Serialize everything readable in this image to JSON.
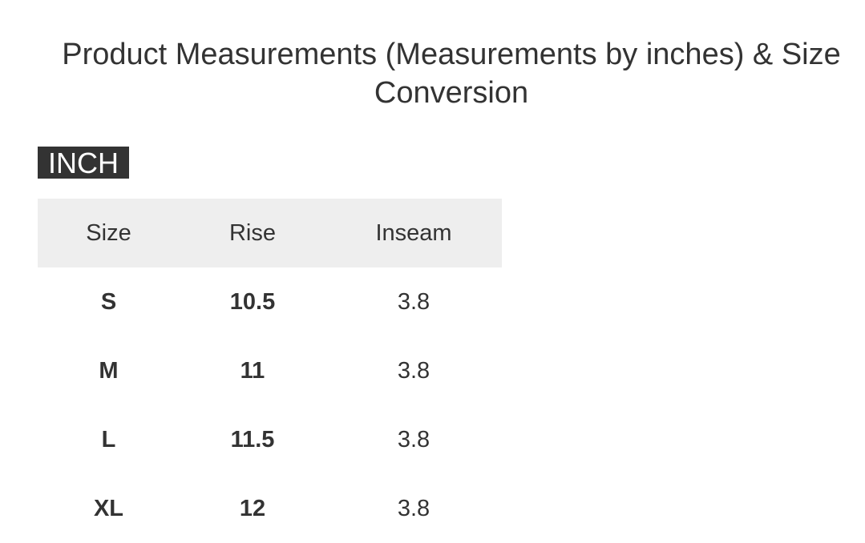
{
  "title": "Product Measurements (Measurements by inches) & Size Conversion",
  "unit_badge": "INCH",
  "table": {
    "headers": [
      "Size",
      "Rise",
      "Inseam"
    ],
    "rows": [
      [
        "S",
        "10.5",
        "3.8"
      ],
      [
        "M",
        "11",
        "3.8"
      ],
      [
        "L",
        "11.5",
        "3.8"
      ],
      [
        "XL",
        "12",
        "3.8"
      ]
    ]
  }
}
